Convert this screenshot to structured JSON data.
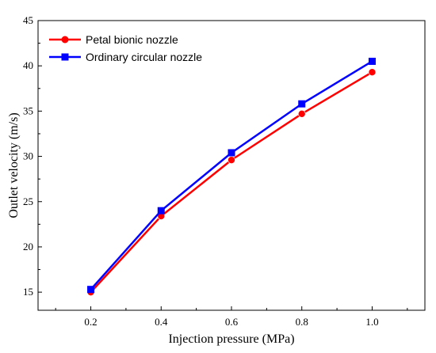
{
  "chart_data": {
    "type": "line",
    "title": "",
    "xlabel": "Injection pressure (MPa)",
    "ylabel": "Outlet velocity (m/s)",
    "xlim": [
      0.05,
      1.15
    ],
    "ylim": [
      13,
      45
    ],
    "x": [
      0.2,
      0.4,
      0.6,
      0.8,
      1.0
    ],
    "xticks": [
      "0.2",
      "0.4",
      "0.6",
      "0.8",
      "1.0"
    ],
    "yticks": [
      "15",
      "20",
      "25",
      "30",
      "35",
      "40",
      "45"
    ],
    "grid": false,
    "legend_position": "top-left",
    "series": [
      {
        "name": "Petal bionic nozzle",
        "values": [
          15.0,
          23.4,
          29.6,
          34.7,
          39.3
        ],
        "color": "#ff0000",
        "marker": "circle"
      },
      {
        "name": "Ordinary circular nozzle",
        "values": [
          15.3,
          24.0,
          30.4,
          35.8,
          40.5
        ],
        "color": "#0000ff",
        "marker": "square"
      }
    ]
  }
}
